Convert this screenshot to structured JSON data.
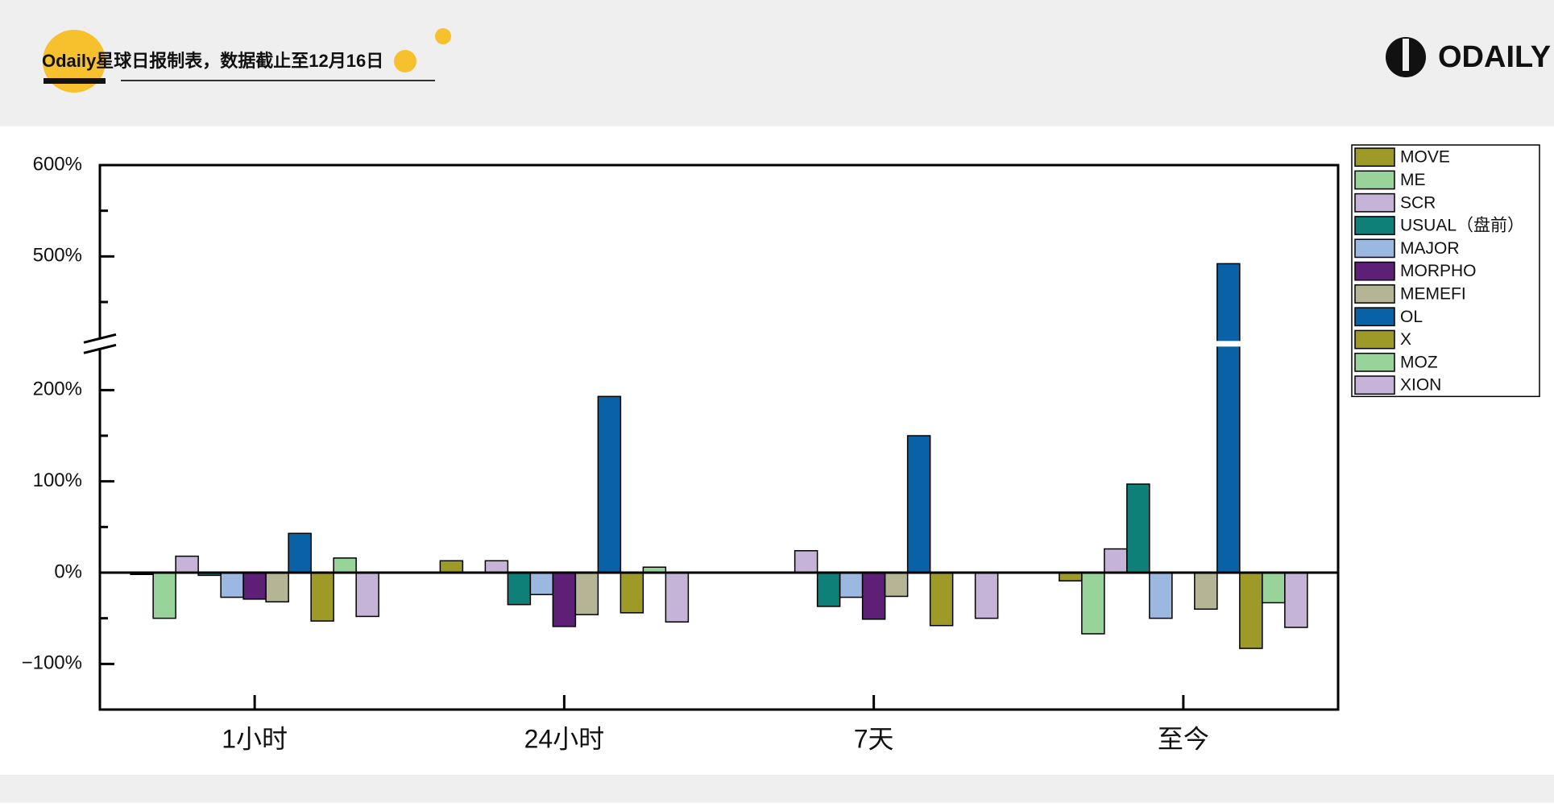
{
  "header": {
    "title": "Odaily星球日报制表，数据截止至12月16日",
    "logo": "ODAILY"
  },
  "chart_data": {
    "type": "bar",
    "categories": [
      "1小时",
      "24小时",
      "7天",
      "至今"
    ],
    "series": [
      {
        "name": "MOVE",
        "color": "#9e9a28",
        "values": [
          -2,
          13,
          0,
          -9
        ]
      },
      {
        "name": "ME",
        "color": "#98d49a",
        "values": [
          -50,
          0,
          0,
          -67
        ]
      },
      {
        "name": "SCR",
        "color": "#c6b4d8",
        "values": [
          18,
          13,
          24,
          26
        ]
      },
      {
        "name": "USUAL（盘前）",
        "color": "#0e8078",
        "values": [
          -3,
          -35,
          -37,
          97
        ]
      },
      {
        "name": "MAJOR",
        "color": "#9bb8e0",
        "values": [
          -27,
          -24,
          -27,
          -50
        ]
      },
      {
        "name": "MORPHO",
        "color": "#5e2077",
        "values": [
          -29,
          -59,
          -51,
          0
        ]
      },
      {
        "name": "MEMEFI",
        "color": "#b5b596",
        "values": [
          -32,
          -46,
          -26,
          -40
        ]
      },
      {
        "name": "OL",
        "color": "#0a62a6",
        "values": [
          43,
          193,
          150,
          492
        ]
      },
      {
        "name": "X",
        "color": "#9e9a28",
        "values": [
          -53,
          -44,
          -58,
          -83
        ]
      },
      {
        "name": "MOZ",
        "color": "#98d49a",
        "values": [
          16,
          6,
          0,
          -33
        ]
      },
      {
        "name": "XION",
        "color": "#c6b4d8",
        "values": [
          -48,
          -54,
          -50,
          -60
        ]
      }
    ],
    "ylim": [
      -150,
      600
    ],
    "y_break": [
      245,
      410
    ],
    "yticks": [
      {
        "value": -100,
        "label": "−100%"
      },
      {
        "value": 0,
        "label": "0%"
      },
      {
        "value": 100,
        "label": "100%"
      },
      {
        "value": 200,
        "label": "200%"
      },
      {
        "value": 500,
        "label": "500%"
      },
      {
        "value": 600,
        "label": "600%"
      }
    ],
    "yminor": [
      -50,
      50,
      150,
      450,
      550
    ],
    "legend": "right",
    "grid": false
  }
}
